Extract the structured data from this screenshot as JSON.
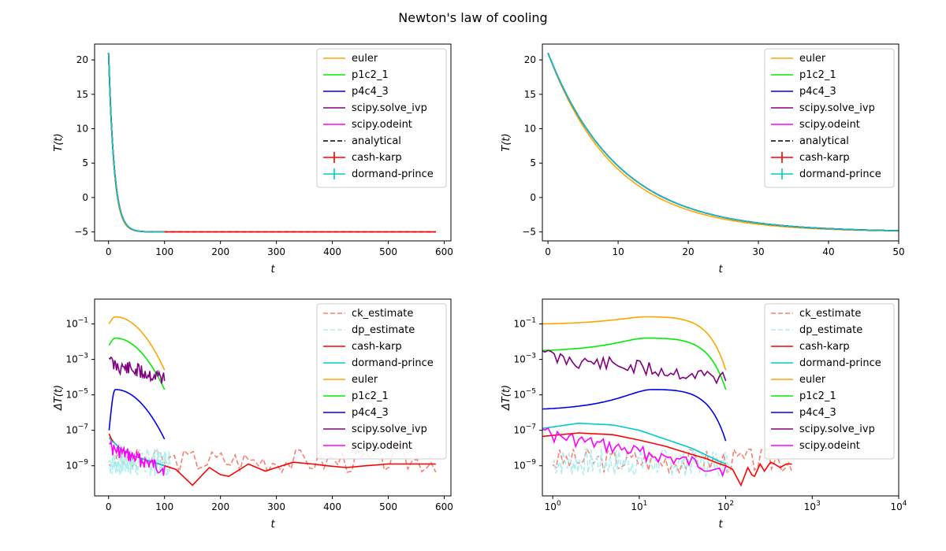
{
  "figure": {
    "suptitle": "Newton's law of cooling"
  },
  "chart_data": [
    {
      "type": "line",
      "xlabel": "t",
      "ylabel": "T(t)",
      "xlim": [
        -25,
        612
      ],
      "ylim": [
        -6.3,
        22.3
      ],
      "yscale": "linear",
      "xscale": "linear",
      "xticks": [
        0,
        100,
        200,
        300,
        400,
        500,
        600
      ],
      "yticks": [
        -5,
        0,
        5,
        10,
        15,
        20
      ],
      "legend_loc": "top-right",
      "series": [
        {
          "name": "euler",
          "color": "#ffa500",
          "style": "solid",
          "curve": {
            "fn": "decay",
            "k": 0.105,
            "x0": 0,
            "x1": 100
          }
        },
        {
          "name": "p1c2_1",
          "color": "#00ee00",
          "style": "solid",
          "curve": {
            "fn": "decay",
            "k": 0.1,
            "x0": 0,
            "x1": 100
          }
        },
        {
          "name": "p4c4_3",
          "color": "#0000ee",
          "style": "solid",
          "curve": {
            "fn": "decay",
            "k": 0.1,
            "x0": 0,
            "x1": 100
          }
        },
        {
          "name": "scipy.solve_ivp",
          "color": "#800080",
          "style": "solid",
          "curve": {
            "fn": "decay",
            "k": 0.1,
            "x0": 0,
            "x1": 100
          }
        },
        {
          "name": "scipy.odeint",
          "color": "#ff00ff",
          "style": "solid",
          "curve": {
            "fn": "decay",
            "k": 0.1,
            "x0": 0,
            "x1": 100
          }
        },
        {
          "name": "analytical",
          "color": "#000000",
          "style": "dashed",
          "curve": {
            "fn": "decay",
            "k": 0.1,
            "x0": 0,
            "x1": 585
          }
        },
        {
          "name": "cash-karp",
          "color": "#ff0000",
          "style": "errorbar",
          "curve": {
            "fn": "decay",
            "k": 0.1,
            "x0": 0,
            "x1": 585
          }
        },
        {
          "name": "dormand-prince",
          "color": "#00cccc",
          "style": "errorbar",
          "curve": {
            "fn": "decay",
            "k": 0.1,
            "x0": 0,
            "x1": 100
          }
        }
      ]
    },
    {
      "type": "line",
      "xlabel": "t",
      "ylabel": "T(t)",
      "xlim": [
        -0.8,
        50
      ],
      "ylim": [
        -6.3,
        22.3
      ],
      "yscale": "linear",
      "xscale": "linear",
      "xticks": [
        0,
        10,
        20,
        30,
        40,
        50
      ],
      "yticks": [
        -5,
        0,
        5,
        10,
        15,
        20
      ],
      "legend_loc": "top-right",
      "series": [
        {
          "name": "euler",
          "color": "#ffa500",
          "style": "solid",
          "curve": {
            "fn": "decay",
            "k": 0.105,
            "x0": 0,
            "x1": 50
          }
        },
        {
          "name": "p1c2_1",
          "color": "#00ee00",
          "style": "solid",
          "curve": {
            "fn": "decay",
            "k": 0.1,
            "x0": 0,
            "x1": 50
          }
        },
        {
          "name": "p4c4_3",
          "color": "#0000ee",
          "style": "solid",
          "curve": {
            "fn": "decay",
            "k": 0.1,
            "x0": 0,
            "x1": 50
          }
        },
        {
          "name": "scipy.solve_ivp",
          "color": "#800080",
          "style": "solid",
          "curve": {
            "fn": "decay",
            "k": 0.1,
            "x0": 0,
            "x1": 50
          }
        },
        {
          "name": "scipy.odeint",
          "color": "#ff00ff",
          "style": "solid",
          "curve": {
            "fn": "decay",
            "k": 0.1,
            "x0": 0,
            "x1": 50
          }
        },
        {
          "name": "analytical",
          "color": "#000000",
          "style": "dashed",
          "curve": {
            "fn": "decay",
            "k": 0.1,
            "x0": 0,
            "x1": 50
          }
        },
        {
          "name": "cash-karp",
          "color": "#ff0000",
          "style": "errorbar",
          "curve": {
            "fn": "decay",
            "k": 0.1,
            "x0": 0,
            "x1": 50
          }
        },
        {
          "name": "dormand-prince",
          "color": "#00cccc",
          "style": "errorbar",
          "curve": {
            "fn": "decay",
            "k": 0.1,
            "x0": 0,
            "x1": 50
          }
        }
      ]
    },
    {
      "type": "line",
      "xlabel": "t",
      "ylabel": "ΔT(t)",
      "xlim": [
        -25,
        612
      ],
      "ylim_log10": [
        -10.7,
        0.4
      ],
      "yscale": "log",
      "xscale": "linear",
      "xticks": [
        0,
        100,
        200,
        300,
        400,
        500,
        600
      ],
      "yticks_log10": [
        -9,
        -7,
        -5,
        -3,
        -1
      ],
      "legend_loc": "top-right",
      "series": [
        {
          "name": "ck_estimate",
          "color": "#fa8072",
          "style": "dashed",
          "noise": {
            "x0": 1,
            "x1": 585,
            "n": 70,
            "lo": -9.4,
            "hi": -8.0,
            "seed": 3
          }
        },
        {
          "name": "dp_estimate",
          "color": "#afeeee",
          "style": "dashed",
          "noise": {
            "x0": 1,
            "x1": 110,
            "n": 120,
            "lo": -9.6,
            "hi": -8.0,
            "seed": 7
          }
        },
        {
          "name": "cash-karp",
          "color": "#ff0000",
          "style": "solid",
          "x": [
            1,
            5,
            10,
            20,
            30,
            40,
            50,
            60,
            80,
            100,
            120,
            150,
            180,
            200,
            215,
            250,
            280,
            330,
            365,
            390,
            425,
            460,
            500,
            550,
            585
          ],
          "y": [
            -7.2,
            -7.5,
            -7.7,
            -8.0,
            -8.2,
            -8.4,
            -8.5,
            -8.6,
            -8.8,
            -9.0,
            -9.2,
            -10.1,
            -9.1,
            -9.5,
            -9.6,
            -8.9,
            -9.3,
            -8.8,
            -8.9,
            -9.0,
            -9.1,
            -9.0,
            -8.9,
            -8.9,
            -8.9
          ]
        },
        {
          "name": "dormand-prince",
          "color": "#00cccc",
          "style": "solid",
          "x": [
            1,
            5,
            10,
            20,
            30,
            40,
            50,
            60,
            70,
            80,
            90,
            100
          ],
          "y": [
            -7.4,
            -7.6,
            -7.7,
            -8.0,
            -8.2,
            -8.4,
            -8.5,
            -8.6,
            -8.7,
            -8.8,
            -8.9,
            -9.0
          ]
        },
        {
          "name": "euler",
          "color": "#ffa500",
          "style": "solid",
          "curve": {
            "fn": "bump",
            "x0": 1,
            "x1": 100,
            "peak": -0.6,
            "xpk": 12,
            "start": -1.0,
            "end": -3.6
          }
        },
        {
          "name": "p1c2_1",
          "color": "#00ee00",
          "style": "solid",
          "curve": {
            "fn": "bump",
            "x0": 1,
            "x1": 100,
            "peak": -1.8,
            "xpk": 12,
            "start": -2.2,
            "end": -4.7
          }
        },
        {
          "name": "p4c4_3",
          "color": "#0000ee",
          "style": "solid",
          "curve": {
            "fn": "bump",
            "x0": 1,
            "x1": 100,
            "peak": -4.7,
            "xpk": 12,
            "start": -7.0,
            "end": -7.5
          }
        },
        {
          "name": "scipy.solve_ivp",
          "color": "#800080",
          "style": "solid",
          "wiggle": {
            "x0": 1,
            "x1": 100,
            "base": -2.8,
            "endv": -3.6,
            "amp": 0.9,
            "seed": 11
          }
        },
        {
          "name": "scipy.odeint",
          "color": "#ff00ff",
          "style": "solid",
          "wiggle": {
            "x0": 1,
            "x1": 100,
            "base": -7.6,
            "endv": -8.8,
            "amp": 0.8,
            "seed": 17
          }
        }
      ]
    },
    {
      "type": "line",
      "xlabel": "t",
      "ylabel": "ΔT(t)",
      "xlim_log10": [
        -0.12,
        4
      ],
      "ylim_log10": [
        -10.7,
        0.4
      ],
      "yscale": "log",
      "xscale": "log",
      "xticks_log10": [
        0,
        1,
        2,
        3,
        4
      ],
      "yticks_log10": [
        -9,
        -7,
        -5,
        -3,
        -1
      ],
      "legend_loc": "top-right",
      "series": [
        {
          "name": "ck_estimate",
          "color": "#fa8072",
          "style": "dashed",
          "noise": {
            "x0": 1,
            "x1": 585,
            "n": 70,
            "lo": -9.4,
            "hi": -8.0,
            "seed": 3,
            "logx": true
          }
        },
        {
          "name": "dp_estimate",
          "color": "#afeeee",
          "style": "dashed",
          "noise": {
            "x0": 1,
            "x1": 110,
            "n": 120,
            "lo": -9.6,
            "hi": -8.0,
            "seed": 7,
            "logx": true
          }
        },
        {
          "name": "cash-karp",
          "color": "#ff0000",
          "style": "solid",
          "x": [
            0.75,
            2,
            5,
            10,
            20,
            40,
            60,
            80,
            100,
            120,
            150,
            180,
            200,
            215,
            250,
            280,
            330,
            365,
            425,
            500,
            585
          ],
          "y": [
            -7.35,
            -7.15,
            -7.25,
            -7.55,
            -7.9,
            -8.35,
            -8.6,
            -8.85,
            -9.0,
            -9.2,
            -10.1,
            -9.1,
            -9.5,
            -9.6,
            -8.9,
            -9.3,
            -8.8,
            -8.9,
            -9.1,
            -8.9,
            -8.9
          ]
        },
        {
          "name": "dormand-prince",
          "color": "#00cccc",
          "style": "solid",
          "x": [
            0.75,
            2,
            5,
            10,
            20,
            40,
            60,
            80,
            100
          ],
          "y": [
            -6.9,
            -6.6,
            -6.7,
            -7.0,
            -7.5,
            -8.0,
            -8.4,
            -8.7,
            -8.9
          ]
        },
        {
          "name": "euler",
          "color": "#ffa500",
          "style": "solid",
          "curve": {
            "fn": "bump",
            "x0": 0.75,
            "x1": 100,
            "peak": -0.6,
            "xpk": 12,
            "start": -1.0,
            "end": -3.6,
            "logx": true
          }
        },
        {
          "name": "p1c2_1",
          "color": "#00ee00",
          "style": "solid",
          "curve": {
            "fn": "bump",
            "x0": 0.75,
            "x1": 100,
            "peak": -1.8,
            "xpk": 12,
            "start": -2.5,
            "end": -4.7,
            "logx": true
          }
        },
        {
          "name": "p4c4_3",
          "color": "#0000ee",
          "style": "solid",
          "curve": {
            "fn": "bump",
            "x0": 0.75,
            "x1": 100,
            "peak": -4.7,
            "xpk": 14,
            "start": -5.8,
            "end": -7.6,
            "logx": true
          }
        },
        {
          "name": "scipy.solve_ivp",
          "color": "#800080",
          "style": "solid",
          "wiggle": {
            "x0": 0.75,
            "x1": 100,
            "base": -2.4,
            "endv": -3.6,
            "amp": 0.9,
            "seed": 11,
            "logx": true
          }
        },
        {
          "name": "scipy.odeint",
          "color": "#ff00ff",
          "style": "solid",
          "wiggle": {
            "x0": 0.75,
            "x1": 100,
            "base": -6.8,
            "endv": -8.8,
            "amp": 0.8,
            "seed": 17,
            "logx": true
          }
        }
      ]
    }
  ]
}
